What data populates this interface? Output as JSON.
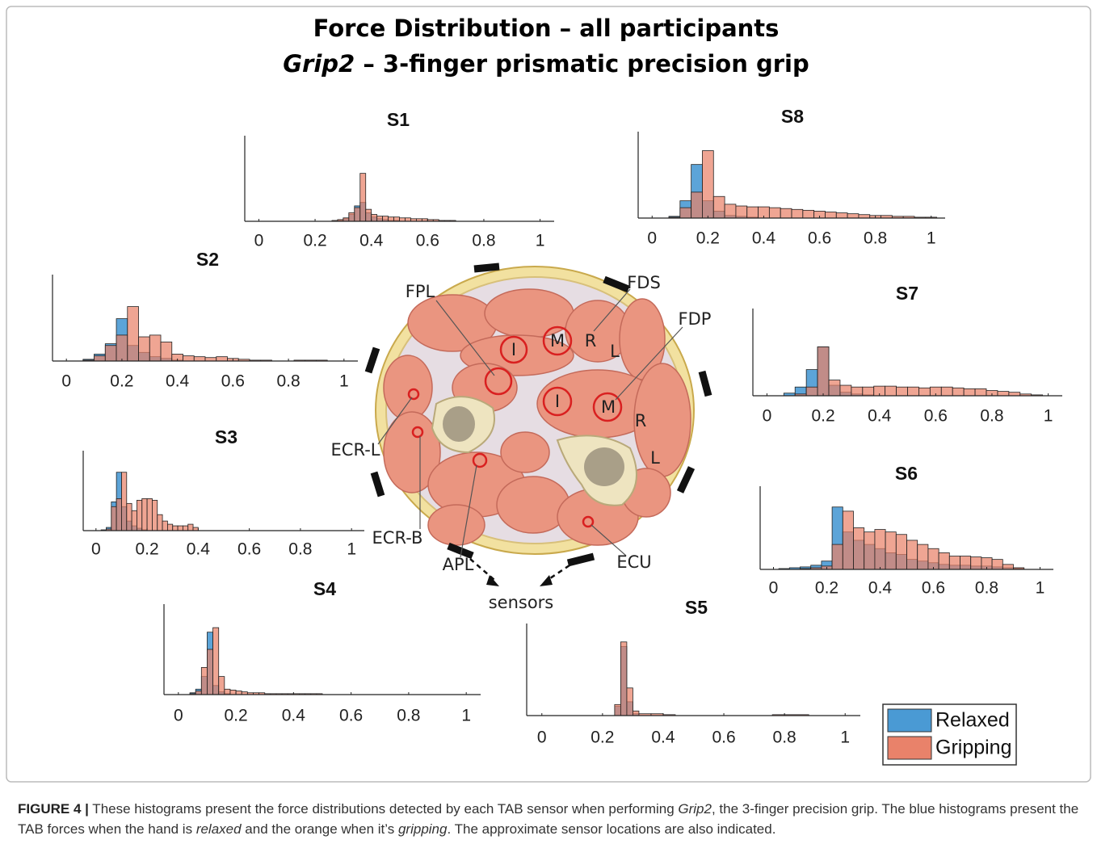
{
  "title": {
    "line1": "Force Distribution – all participants",
    "line2_italic": "Grip2",
    "line2_rest": " – 3-finger prismatic precision grip"
  },
  "chart_data": [
    {
      "type": "histogram",
      "title": "S1",
      "xlim": [
        -0.05,
        1.05
      ],
      "xticks": [
        0,
        0.2,
        0.4,
        0.6,
        0.8,
        1
      ],
      "ylim": [
        0,
        1
      ],
      "bins": [
        0.26,
        0.28,
        0.3,
        0.32,
        0.34,
        0.36,
        0.38,
        0.4,
        0.42,
        0.44,
        0.46,
        0.48,
        0.5,
        0.52,
        0.54,
        0.56,
        0.58,
        0.6,
        0.62,
        0.64,
        0.66,
        0.68,
        0.7
      ],
      "series": [
        {
          "name": "Relaxed",
          "color": "#4a9ad4",
          "values": [
            0,
            0.01,
            0.03,
            0.08,
            0.18,
            0.22,
            0.1,
            0.05,
            0.03,
            0.02,
            0.01,
            0.01,
            0,
            0,
            0,
            0,
            0,
            0,
            0,
            0,
            0,
            0
          ]
        },
        {
          "name": "Gripping",
          "color": "#e9826a",
          "values": [
            0.01,
            0.02,
            0.04,
            0.1,
            0.16,
            0.56,
            0.14,
            0.08,
            0.06,
            0.06,
            0.05,
            0.05,
            0.04,
            0.04,
            0.03,
            0.03,
            0.03,
            0.02,
            0.02,
            0.01,
            0.01,
            0.01
          ]
        }
      ]
    },
    {
      "type": "histogram",
      "title": "S2",
      "xlim": [
        -0.05,
        1.05
      ],
      "xticks": [
        0,
        0.2,
        0.4,
        0.6,
        0.8,
        1
      ],
      "ylim": [
        0,
        1
      ],
      "bins": [
        0.06,
        0.1,
        0.14,
        0.18,
        0.22,
        0.26,
        0.3,
        0.34,
        0.38,
        0.42,
        0.46,
        0.5,
        0.54,
        0.58,
        0.62,
        0.66,
        0.7,
        0.74,
        0.78,
        0.82,
        0.86,
        0.9,
        0.94
      ],
      "series": [
        {
          "name": "Relaxed",
          "color": "#4a9ad4",
          "values": [
            0.02,
            0.08,
            0.2,
            0.49,
            0.18,
            0.1,
            0.05,
            0.03,
            0.01,
            0,
            0,
            0,
            0,
            0,
            0,
            0,
            0,
            0,
            0,
            0,
            0,
            0
          ]
        },
        {
          "name": "Gripping",
          "color": "#e9826a",
          "values": [
            0.01,
            0.06,
            0.18,
            0.3,
            0.63,
            0.28,
            0.3,
            0.22,
            0.08,
            0.06,
            0.05,
            0.04,
            0.05,
            0.03,
            0.02,
            0.01,
            0.01,
            0,
            0,
            0.01,
            0.01,
            0.01
          ]
        }
      ]
    },
    {
      "type": "histogram",
      "title": "S3",
      "xlim": [
        -0.05,
        1.05
      ],
      "xticks": [
        0,
        0.2,
        0.4,
        0.6,
        0.8,
        1
      ],
      "ylim": [
        0,
        1
      ],
      "bins": [
        0.02,
        0.04,
        0.06,
        0.08,
        0.1,
        0.12,
        0.14,
        0.16,
        0.18,
        0.2,
        0.22,
        0.24,
        0.26,
        0.28,
        0.3,
        0.32,
        0.34,
        0.36,
        0.38,
        0.4
      ],
      "series": [
        {
          "name": "Relaxed",
          "color": "#4a9ad4",
          "values": [
            0.01,
            0.04,
            0.36,
            0.73,
            0.3,
            0.12,
            0.06,
            0.03,
            0.01,
            0,
            0,
            0,
            0,
            0,
            0,
            0,
            0,
            0,
            0
          ]
        },
        {
          "name": "Gripping",
          "color": "#e9826a",
          "values": [
            0,
            0.02,
            0.3,
            0.4,
            0.73,
            0.34,
            0.25,
            0.38,
            0.4,
            0.4,
            0.38,
            0.2,
            0.12,
            0.08,
            0.06,
            0.06,
            0.06,
            0.08,
            0.04
          ]
        }
      ]
    },
    {
      "type": "histogram",
      "title": "S4",
      "xlim": [
        -0.05,
        1.05
      ],
      "xticks": [
        0,
        0.2,
        0.4,
        0.6,
        0.8,
        1
      ],
      "ylim": [
        0,
        1
      ],
      "bins": [
        0.04,
        0.06,
        0.08,
        0.1,
        0.12,
        0.14,
        0.16,
        0.18,
        0.2,
        0.22,
        0.24,
        0.26,
        0.28,
        0.3,
        0.32,
        0.34,
        0.36,
        0.38,
        0.4,
        0.42,
        0.44,
        0.46,
        0.48,
        0.5
      ],
      "series": [
        {
          "name": "Relaxed",
          "color": "#4a9ad4",
          "values": [
            0.02,
            0.06,
            0.2,
            0.69,
            0.1,
            0.03,
            0.01,
            0,
            0,
            0,
            0,
            0,
            0,
            0,
            0,
            0,
            0,
            0,
            0,
            0,
            0,
            0,
            0
          ]
        },
        {
          "name": "Gripping",
          "color": "#e9826a",
          "values": [
            0.01,
            0.04,
            0.3,
            0.5,
            0.74,
            0.2,
            0.06,
            0.05,
            0.04,
            0.03,
            0.02,
            0.02,
            0.02,
            0.01,
            0.01,
            0.01,
            0.01,
            0.01,
            0.01,
            0.01,
            0.01,
            0.01,
            0.01
          ]
        }
      ]
    },
    {
      "type": "histogram",
      "title": "S5",
      "xlim": [
        -0.05,
        1.05
      ],
      "xticks": [
        0,
        0.2,
        0.4,
        0.6,
        0.8,
        1
      ],
      "ylim": [
        0,
        1
      ],
      "bins": [
        0.24,
        0.26,
        0.28,
        0.3,
        0.32,
        0.36,
        0.4,
        0.44,
        0.48,
        0.52,
        0.56,
        0.6,
        0.64,
        0.68,
        0.72,
        0.76,
        0.8,
        0.88,
        0.96
      ],
      "series": [
        {
          "name": "Relaxed",
          "color": "#4a9ad4",
          "values": [
            0.1,
            0.75,
            0.15,
            0.02,
            0,
            0,
            0,
            0,
            0,
            0,
            0,
            0,
            0,
            0,
            0,
            0,
            0,
            0
          ]
        },
        {
          "name": "Gripping",
          "color": "#e9826a",
          "values": [
            0.12,
            0.8,
            0.3,
            0.05,
            0.02,
            0.02,
            0.01,
            0,
            0,
            0,
            0,
            0,
            0,
            0,
            0,
            0.01,
            0.01,
            0
          ]
        }
      ]
    },
    {
      "type": "histogram",
      "title": "S6",
      "xlim": [
        -0.05,
        1.05
      ],
      "xticks": [
        0,
        0.2,
        0.4,
        0.6,
        0.8,
        1
      ],
      "ylim": [
        0,
        1
      ],
      "bins": [
        0.02,
        0.06,
        0.1,
        0.14,
        0.18,
        0.22,
        0.26,
        0.3,
        0.34,
        0.38,
        0.42,
        0.46,
        0.5,
        0.54,
        0.58,
        0.62,
        0.66,
        0.7,
        0.74,
        0.78,
        0.82,
        0.86,
        0.9,
        0.94
      ],
      "series": [
        {
          "name": "Relaxed",
          "color": "#4a9ad4",
          "values": [
            0.01,
            0.02,
            0.03,
            0.05,
            0.1,
            0.75,
            0.45,
            0.35,
            0.3,
            0.25,
            0.2,
            0.18,
            0.12,
            0.1,
            0.08,
            0.06,
            0.05,
            0.05,
            0.04,
            0.04,
            0.03,
            0.02,
            0.01
          ]
        },
        {
          "name": "Gripping",
          "color": "#e9826a",
          "values": [
            0,
            0,
            0.01,
            0.02,
            0.04,
            0.3,
            0.7,
            0.5,
            0.45,
            0.48,
            0.45,
            0.42,
            0.35,
            0.3,
            0.25,
            0.2,
            0.16,
            0.16,
            0.15,
            0.14,
            0.12,
            0.06,
            0.02
          ]
        }
      ]
    },
    {
      "type": "histogram",
      "title": "S7",
      "xlim": [
        -0.05,
        1.05
      ],
      "xticks": [
        0,
        0.2,
        0.4,
        0.6,
        0.8,
        1
      ],
      "ylim": [
        0,
        1
      ],
      "bins": [
        0.06,
        0.1,
        0.14,
        0.18,
        0.22,
        0.26,
        0.3,
        0.34,
        0.38,
        0.42,
        0.46,
        0.5,
        0.54,
        0.58,
        0.62,
        0.66,
        0.7,
        0.74,
        0.78,
        0.82,
        0.86,
        0.9,
        0.94,
        0.98
      ],
      "series": [
        {
          "name": "Relaxed",
          "color": "#4a9ad4",
          "values": [
            0.03,
            0.1,
            0.3,
            0.56,
            0.12,
            0.04,
            0.02,
            0.01,
            0,
            0,
            0,
            0,
            0,
            0,
            0,
            0,
            0,
            0,
            0,
            0,
            0,
            0,
            0
          ]
        },
        {
          "name": "Gripping",
          "color": "#e9826a",
          "values": [
            0,
            0.02,
            0.1,
            0.56,
            0.18,
            0.12,
            0.1,
            0.1,
            0.11,
            0.11,
            0.1,
            0.1,
            0.09,
            0.1,
            0.1,
            0.09,
            0.08,
            0.08,
            0.06,
            0.05,
            0.04,
            0.02,
            0.01
          ]
        }
      ]
    },
    {
      "type": "histogram",
      "title": "S8",
      "xlim": [
        -0.05,
        1.05
      ],
      "xticks": [
        0,
        0.2,
        0.4,
        0.6,
        0.8,
        1
      ],
      "ylim": [
        0,
        1
      ],
      "bins": [
        0.06,
        0.1,
        0.14,
        0.18,
        0.22,
        0.26,
        0.3,
        0.34,
        0.38,
        0.42,
        0.46,
        0.5,
        0.54,
        0.58,
        0.62,
        0.66,
        0.7,
        0.74,
        0.78,
        0.82,
        0.86,
        0.9,
        0.94,
        0.98,
        1.02
      ],
      "series": [
        {
          "name": "Relaxed",
          "color": "#4a9ad4",
          "values": [
            0.02,
            0.2,
            0.62,
            0.2,
            0.08,
            0.03,
            0.02,
            0.01,
            0,
            0,
            0,
            0,
            0,
            0,
            0,
            0,
            0,
            0,
            0,
            0,
            0,
            0,
            0,
            0
          ]
        },
        {
          "name": "Gripping",
          "color": "#e9826a",
          "values": [
            0.01,
            0.12,
            0.3,
            0.78,
            0.25,
            0.16,
            0.14,
            0.13,
            0.13,
            0.12,
            0.11,
            0.1,
            0.09,
            0.08,
            0.07,
            0.06,
            0.05,
            0.04,
            0.03,
            0.03,
            0.02,
            0.02,
            0.01,
            0.01
          ]
        }
      ]
    }
  ],
  "cross_section": {
    "labels": [
      "FPL",
      "FDS",
      "FDP",
      "R",
      "L",
      "I",
      "M",
      "I",
      "M",
      "R",
      "L",
      "ECR-L",
      "ECR-B",
      "APL",
      "ECU"
    ],
    "pointer": "sensors"
  },
  "caption": {
    "label": "FIGURE 4 |",
    "part1": " These histograms present the force distributions detected by each TAB sensor when performing ",
    "italic1": "Grip2",
    "part2": ", the 3-finger precision grip. The blue histograms present the TAB forces when the hand is ",
    "italic2": "relaxed",
    "part3": " and the orange when it’s ",
    "italic3": "gripping",
    "part4": ". The approximate sensor locations are also indicated."
  }
}
